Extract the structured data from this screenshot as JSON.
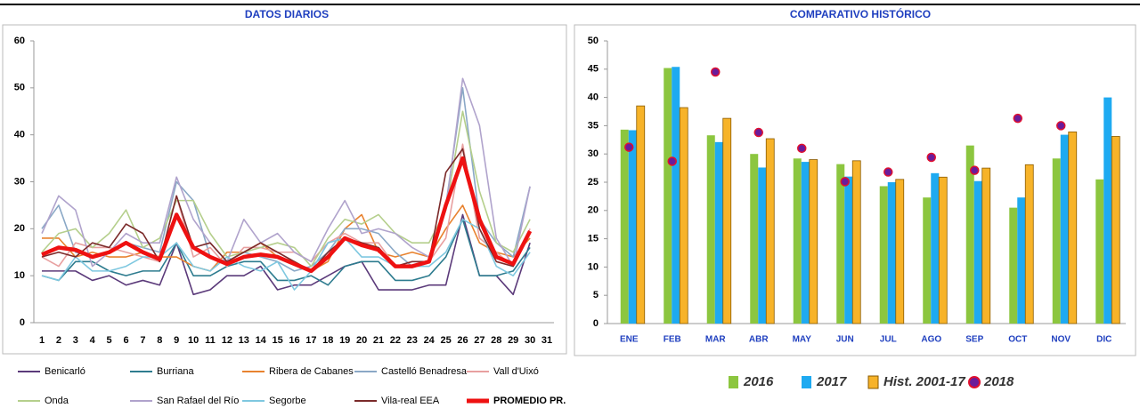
{
  "chart_data": [
    {
      "type": "line",
      "title": "DATOS DIARIOS",
      "categories": [
        "1",
        "2",
        "3",
        "4",
        "5",
        "6",
        "7",
        "8",
        "9",
        "10",
        "11",
        "12",
        "13",
        "14",
        "15",
        "16",
        "17",
        "18",
        "19",
        "20",
        "21",
        "22",
        "23",
        "24",
        "25",
        "26",
        "27",
        "28",
        "29",
        "30",
        "31"
      ],
      "ylim": [
        0,
        60
      ],
      "yticks": [
        0,
        10,
        20,
        30,
        40,
        50,
        60
      ],
      "grid": false,
      "series": [
        {
          "name": "Benicarló",
          "color": "#5b3a7a",
          "values": [
            11,
            11,
            11,
            9,
            10,
            8,
            9,
            8,
            17,
            6,
            7,
            10,
            10,
            12,
            7,
            8,
            8,
            10,
            12,
            13,
            7,
            7,
            7,
            8,
            8,
            23,
            10,
            10,
            6,
            17,
            null
          ]
        },
        {
          "name": "Burriana",
          "color": "#2e7c8f",
          "values": [
            10,
            9,
            13,
            13,
            11,
            10,
            11,
            11,
            17,
            10,
            10,
            12,
            13,
            13,
            9,
            9,
            10,
            8,
            12,
            13,
            13,
            9,
            9,
            10,
            14,
            22,
            10,
            10,
            11,
            16,
            null
          ]
        },
        {
          "name": "Ribera de Cabanes",
          "color": "#e8822f",
          "values": [
            18,
            18,
            14,
            15,
            14,
            14,
            15,
            14,
            14,
            12,
            11,
            15,
            15,
            17,
            14,
            13,
            11,
            13,
            20,
            23,
            15,
            14,
            15,
            14,
            20,
            25,
            17,
            15,
            14,
            18,
            null
          ]
        },
        {
          "name": "Castelló Benadresa",
          "color": "#8aa8c6",
          "values": [
            20,
            25,
            15,
            14,
            15,
            17,
            16,
            15,
            30,
            26,
            14,
            13,
            15,
            14,
            13,
            11,
            12,
            15,
            20,
            20,
            19,
            15,
            12,
            13,
            25,
            50,
            22,
            17,
            14,
            29,
            null
          ]
        },
        {
          "name": "Vall d'Uixó",
          "color": "#e8a0a0",
          "values": [
            14,
            12,
            17,
            16,
            16,
            15,
            14,
            13,
            27,
            14,
            16,
            12,
            16,
            16,
            15,
            15,
            13,
            17,
            19,
            17,
            17,
            12,
            12,
            13,
            18,
            38,
            18,
            15,
            12,
            20,
            null
          ]
        },
        {
          "name": "Onda",
          "color": "#b5cf8c",
          "values": [
            15,
            19,
            20,
            16,
            19,
            24,
            16,
            18,
            26,
            26,
            19,
            14,
            15,
            16,
            17,
            16,
            12,
            18,
            22,
            21,
            23,
            19,
            17,
            17,
            24,
            45,
            28,
            17,
            15,
            22,
            null
          ]
        },
        {
          "name": "San Rafael del Río",
          "color": "#b0a3cc",
          "values": [
            19,
            27,
            24,
            12,
            15,
            19,
            17,
            17,
            31,
            22,
            17,
            13,
            22,
            17,
            19,
            15,
            13,
            20,
            26,
            19,
            20,
            19,
            16,
            14,
            24,
            52,
            42,
            18,
            12,
            29,
            null
          ]
        },
        {
          "name": "Segorbe",
          "color": "#7fc8e0",
          "values": [
            10,
            9,
            14,
            11,
            11,
            12,
            14,
            14,
            17,
            12,
            11,
            14,
            12,
            11,
            13,
            7,
            11,
            17,
            18,
            14,
            14,
            12,
            12,
            12,
            15,
            22,
            20,
            12,
            10,
            15,
            null
          ]
        },
        {
          "name": "Vila-real EEA",
          "color": "#7b2a2a",
          "values": [
            14,
            15,
            14,
            17,
            16,
            21,
            19,
            13,
            27,
            16,
            17,
            13,
            15,
            17,
            15,
            13,
            11,
            15,
            18,
            17,
            16,
            12,
            13,
            13,
            32,
            37,
            20,
            13,
            12,
            19,
            null
          ]
        },
        {
          "name": "PROMEDIO PR.",
          "color": "#ee1111",
          "values": [
            14.5,
            16,
            15.5,
            14,
            15,
            17,
            15,
            13.5,
            23,
            16,
            14,
            12.5,
            14,
            14.5,
            14,
            12.5,
            11,
            14,
            18,
            16.5,
            15.5,
            12,
            12,
            13,
            25,
            35,
            22,
            14,
            12.5,
            19.5,
            null
          ]
        }
      ]
    },
    {
      "type": "bar",
      "title": "COMPARATIVO HISTÓRICO",
      "categories": [
        "ENE",
        "FEB",
        "MAR",
        "ABR",
        "MAY",
        "JUN",
        "JUL",
        "AGO",
        "SEP",
        "OCT",
        "NOV",
        "DIC"
      ],
      "ylim": [
        0,
        50
      ],
      "yticks": [
        0,
        5,
        10,
        15,
        20,
        25,
        30,
        35,
        40,
        45,
        50
      ],
      "grid": false,
      "series": [
        {
          "name": "2016",
          "color": "#8cc63f",
          "values": [
            34.3,
            45.2,
            33.3,
            30,
            29.2,
            28.2,
            24.3,
            22.3,
            31.5,
            20.5,
            29.2,
            25.5
          ]
        },
        {
          "name": "2017",
          "color": "#1eaaf1",
          "values": [
            34.2,
            45.4,
            32.1,
            27.6,
            28.6,
            26,
            25,
            26.6,
            25.2,
            22.3,
            33.4,
            40
          ]
        },
        {
          "name": "Hist. 2001-17",
          "color": "#f7b329",
          "values": [
            38.5,
            38.2,
            36.3,
            32.7,
            29,
            28.8,
            25.5,
            25.9,
            27.5,
            28.1,
            33.9,
            33.1
          ]
        },
        {
          "name": "2018",
          "type": "scatter",
          "color": "#6a1b9a",
          "values": [
            31.2,
            28.7,
            44.5,
            33.8,
            31,
            25.1,
            26.8,
            29.4,
            27.1,
            36.3,
            35,
            null
          ]
        }
      ]
    }
  ]
}
